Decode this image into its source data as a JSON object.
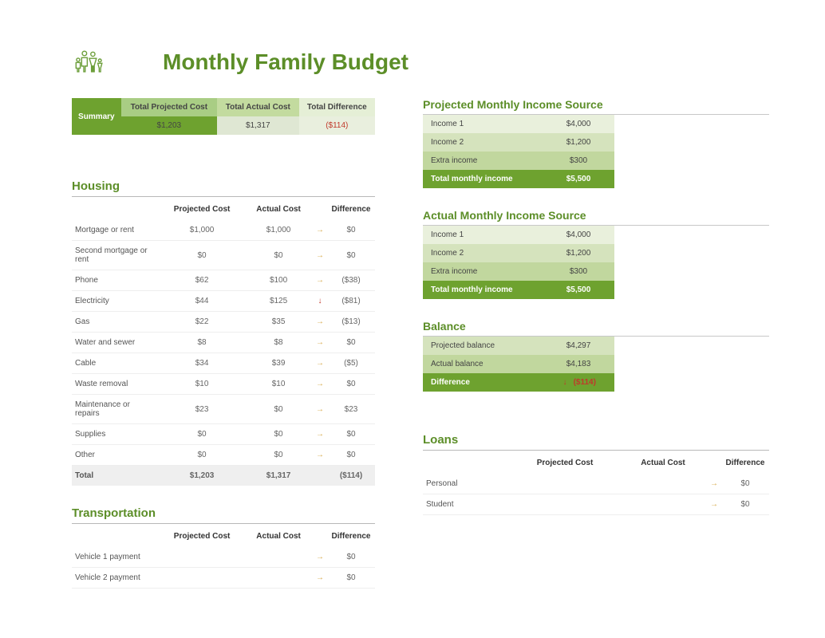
{
  "title": "Monthly Family Budget",
  "summary": {
    "label": "Summary",
    "headers": {
      "projected": "Total Projected Cost",
      "actual": "Total Actual Cost",
      "diff": "Total Difference"
    },
    "values": {
      "projected": "$1,203",
      "actual": "$1,317",
      "diff": "($114)"
    }
  },
  "housing": {
    "title": "Housing",
    "headers": {
      "projected": "Projected Cost",
      "actual": "Actual Cost",
      "diff": "Difference"
    },
    "rows": [
      {
        "label": "Mortgage or rent",
        "projected": "$1,000",
        "actual": "$1,000",
        "arrow": "→",
        "diff": "$0"
      },
      {
        "label": "Second mortgage or rent",
        "projected": "$0",
        "actual": "$0",
        "arrow": "→",
        "diff": "$0"
      },
      {
        "label": "Phone",
        "projected": "$62",
        "actual": "$100",
        "arrow": "→",
        "diff": "($38)",
        "neg": true
      },
      {
        "label": "Electricity",
        "projected": "$44",
        "actual": "$125",
        "arrow": "↓",
        "diff": "($81)",
        "neg": true
      },
      {
        "label": "Gas",
        "projected": "$22",
        "actual": "$35",
        "arrow": "→",
        "diff": "($13)",
        "neg": true
      },
      {
        "label": "Water and sewer",
        "projected": "$8",
        "actual": "$8",
        "arrow": "→",
        "diff": "$0"
      },
      {
        "label": "Cable",
        "projected": "$34",
        "actual": "$39",
        "arrow": "→",
        "diff": "($5)",
        "neg": true
      },
      {
        "label": "Waste removal",
        "projected": "$10",
        "actual": "$10",
        "arrow": "→",
        "diff": "$0"
      },
      {
        "label": "Maintenance or repairs",
        "projected": "$23",
        "actual": "$0",
        "arrow": "→",
        "diff": "$23"
      },
      {
        "label": "Supplies",
        "projected": "$0",
        "actual": "$0",
        "arrow": "→",
        "diff": "$0"
      },
      {
        "label": "Other",
        "projected": "$0",
        "actual": "$0",
        "arrow": "→",
        "diff": "$0"
      }
    ],
    "total": {
      "label": "Total",
      "projected": "$1,203",
      "actual": "$1,317",
      "diff": "($114)",
      "neg": true
    }
  },
  "transportation": {
    "title": "Transportation",
    "headers": {
      "projected": "Projected Cost",
      "actual": "Actual Cost",
      "diff": "Difference"
    },
    "rows": [
      {
        "label": "Vehicle 1 payment",
        "projected": "",
        "actual": "",
        "arrow": "→",
        "diff": "$0"
      },
      {
        "label": "Vehicle 2 payment",
        "projected": "",
        "actual": "",
        "arrow": "→",
        "diff": "$0"
      }
    ]
  },
  "loans": {
    "title": "Loans",
    "headers": {
      "projected": "Projected Cost",
      "actual": "Actual Cost",
      "diff": "Difference"
    },
    "rows": [
      {
        "label": "Personal",
        "projected": "",
        "actual": "",
        "arrow": "→",
        "diff": "$0"
      },
      {
        "label": "Student",
        "projected": "",
        "actual": "",
        "arrow": "→",
        "diff": "$0"
      }
    ]
  },
  "projected_income": {
    "title": "Projected Monthly Income Source",
    "rows": [
      {
        "label": "Income 1",
        "value": "$4,000",
        "shade": "shade1"
      },
      {
        "label": "Income 2",
        "value": "$1,200",
        "shade": "shade2"
      },
      {
        "label": "Extra income",
        "value": "$300",
        "shade": "shade3"
      }
    ],
    "total": {
      "label": "Total monthly income",
      "value": "$5,500"
    }
  },
  "actual_income": {
    "title": "Actual Monthly Income Source",
    "rows": [
      {
        "label": "Income 1",
        "value": "$4,000",
        "shade": "shade1"
      },
      {
        "label": "Income 2",
        "value": "$1,200",
        "shade": "shade2"
      },
      {
        "label": "Extra income",
        "value": "$300",
        "shade": "shade3"
      }
    ],
    "total": {
      "label": "Total monthly income",
      "value": "$5,500"
    }
  },
  "balance": {
    "title": "Balance",
    "rows": [
      {
        "label": "Projected balance",
        "value": "$4,297",
        "shade": "shade2"
      },
      {
        "label": "Actual balance",
        "value": "$4,183",
        "shade": "shade3"
      }
    ],
    "diff": {
      "label": "Difference",
      "arrow": "↓",
      "value": "($114)"
    }
  }
}
